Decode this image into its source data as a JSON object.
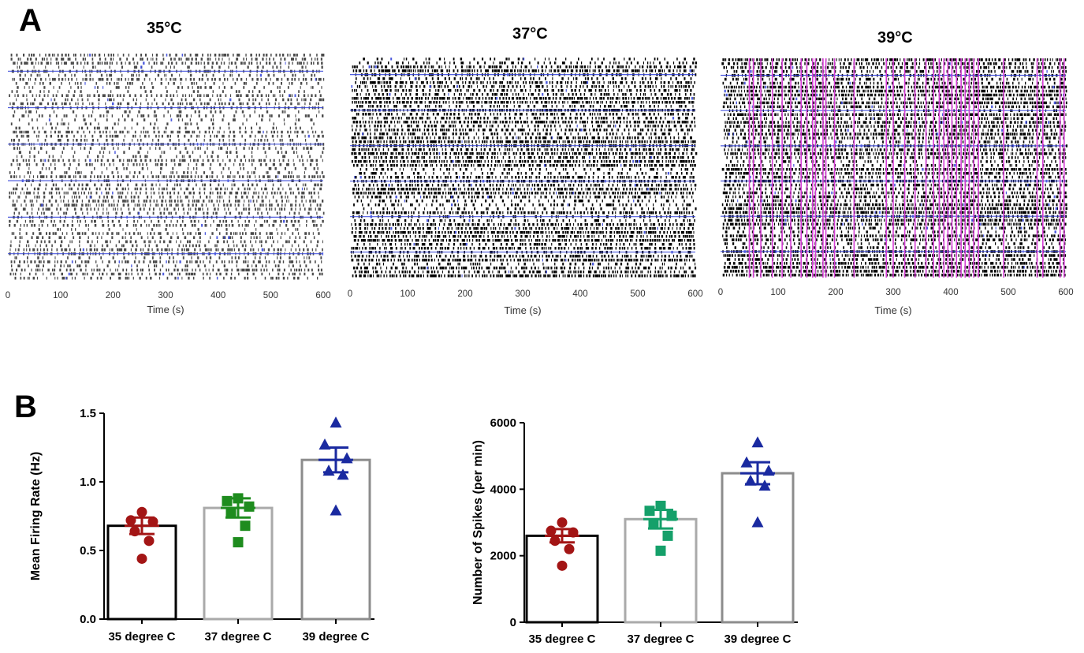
{
  "panel_labels": {
    "a": "A",
    "b": "B"
  },
  "rasters": {
    "title": "",
    "time_axis_label": "Time (s)",
    "x_ticks": [
      0,
      100,
      200,
      300,
      400,
      500,
      600
    ],
    "xlim": [
      0,
      600
    ],
    "spike_color": "#000000",
    "highlight_color": "#2f3fd8",
    "burst_color": "#d63fd6",
    "panels": [
      {
        "title": "35°C",
        "density": 0.28,
        "grey": true,
        "bursts": []
      },
      {
        "title": "37°C",
        "density": 0.42,
        "grey": false,
        "bursts": []
      },
      {
        "title": "39°C",
        "density": 0.5,
        "grey": false,
        "bursts": [
          50,
          57,
          70,
          90,
          107,
          122,
          140,
          150,
          160,
          165,
          178,
          183,
          198,
          232,
          288,
          300,
          320,
          338,
          357,
          370,
          380,
          388,
          395,
          402,
          410,
          418,
          425,
          432,
          440,
          448,
          492,
          550,
          560,
          590,
          597
        ]
      }
    ]
  },
  "chart_data": [
    {
      "type": "bar",
      "title": "",
      "ylabel": "Mean Firing Rate (Hz)",
      "xlabel": "",
      "ylim": [
        0,
        1.5
      ],
      "yticks": [
        "0.0",
        "0.5",
        "1.0",
        "1.5"
      ],
      "ytick_values": [
        0,
        0.5,
        1.0,
        1.5
      ],
      "categories": [
        "35 degree C",
        "37 degree C",
        "39 degree C"
      ],
      "values": [
        0.68,
        0.81,
        1.16
      ],
      "sem": [
        0.06,
        0.07,
        0.09
      ],
      "bar_edge_colors": [
        "#000000",
        "#aaaaaa",
        "#8c8c8c"
      ],
      "points": [
        {
          "marker": "circle",
          "color": "#a31515",
          "values": [
            0.78,
            0.72,
            0.71,
            0.64,
            0.57,
            0.44
          ]
        },
        {
          "marker": "square",
          "color": "#1e8c1e",
          "values": [
            0.88,
            0.86,
            0.82,
            0.78,
            0.68,
            0.56
          ]
        },
        {
          "marker": "triangle",
          "color": "#1a2aa0",
          "values": [
            1.43,
            1.27,
            1.17,
            1.08,
            1.05,
            0.79
          ]
        }
      ]
    },
    {
      "type": "bar",
      "title": "",
      "ylabel": "Number of Spikes (per min)",
      "xlabel": "",
      "ylim": [
        0,
        6000
      ],
      "yticks": [
        "0",
        "2000",
        "4000",
        "6000"
      ],
      "ytick_values": [
        0,
        2000,
        4000,
        6000
      ],
      "categories": [
        "35 degree C",
        "37 degree C",
        "39 degree C"
      ],
      "values": [
        2600,
        3100,
        4480
      ],
      "sem": [
        200,
        280,
        330
      ],
      "bar_edge_colors": [
        "#000000",
        "#aaaaaa",
        "#8c8c8c"
      ],
      "points": [
        {
          "marker": "circle",
          "color": "#a31515",
          "values": [
            3000,
            2750,
            2700,
            2450,
            2200,
            1700
          ]
        },
        {
          "marker": "square",
          "color": "#15a06a",
          "values": [
            3500,
            3350,
            3200,
            2950,
            2600,
            2150
          ]
        },
        {
          "marker": "triangle",
          "color": "#1a2aa0",
          "values": [
            5400,
            4800,
            4550,
            4250,
            4100,
            3000
          ]
        }
      ]
    }
  ]
}
